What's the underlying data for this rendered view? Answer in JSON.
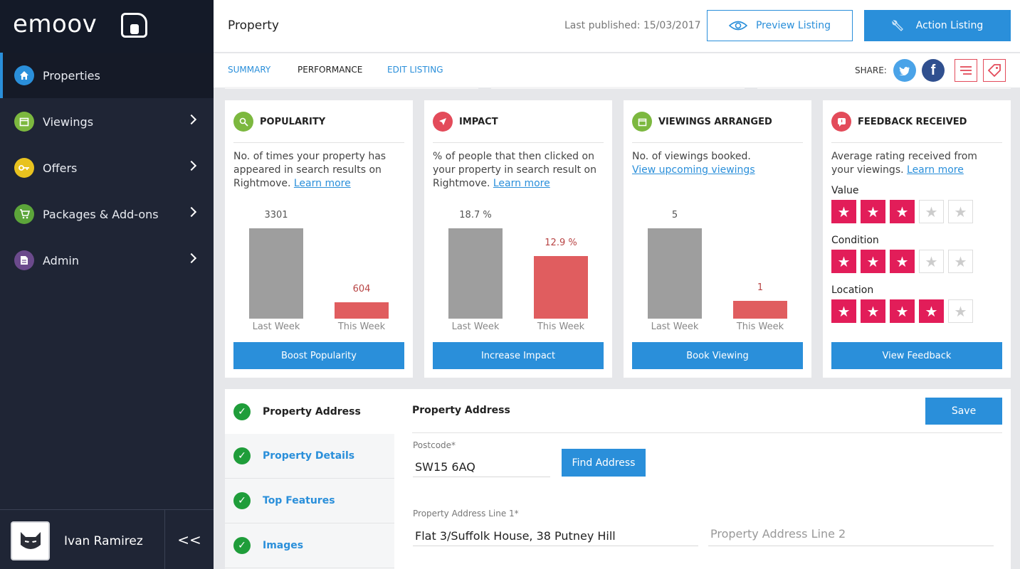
{
  "brand": {
    "name": "emoov"
  },
  "sidebar": {
    "items": [
      {
        "label": "Properties",
        "color": "#2a8fda"
      },
      {
        "label": "Viewings",
        "color": "#7cb83f"
      },
      {
        "label": "Offers",
        "color": "#e8c21f"
      },
      {
        "label": "Packages & Add-ons",
        "color": "#5ca53a"
      },
      {
        "label": "Admin",
        "color": "#6b4a8c"
      }
    ],
    "user": {
      "name": "Ivan Ramirez"
    },
    "collapse_label": "<<"
  },
  "header": {
    "title": "Property",
    "last_published": "Last published: 15/03/2017",
    "preview_label": "Preview Listing",
    "action_label": "Action Listing"
  },
  "tabs": [
    {
      "label": "SUMMARY"
    },
    {
      "label": "PERFORMANCE"
    },
    {
      "label": "EDIT LISTING"
    }
  ],
  "share": {
    "label": "SHARE:",
    "twitter_color": "#4aa3e8",
    "facebook_color": "#30508f",
    "accent": "#e34b5a"
  },
  "cards": {
    "popularity": {
      "title": "POPULARITY",
      "desc": "No. of times your property has appeared in search results on Rightmove.",
      "link": "Learn more",
      "last_week_value": "3301",
      "this_week_value": "604",
      "last_week_label": "Last Week",
      "this_week_label": "This Week",
      "cta": "Boost Popularity"
    },
    "impact": {
      "title": "IMPACT",
      "desc": "% of people that then clicked on your property in search result on Rightmove.",
      "link": "Learn more",
      "last_week_value": "18.7 %",
      "this_week_value": "12.9 %",
      "last_week_label": "Last Week",
      "this_week_label": "This Week",
      "cta": "Increase Impact"
    },
    "viewings": {
      "title": "VIEWINGS ARRANGED",
      "desc": "No. of viewings booked.",
      "link": "View upcoming viewings",
      "last_week_value": "5",
      "this_week_value": "1",
      "last_week_label": "Last Week",
      "this_week_label": "This Week",
      "cta": "Book Viewing"
    },
    "feedback": {
      "title": "FEEDBACK RECEIVED",
      "desc": "Average rating received from your viewings.",
      "link": "Learn more",
      "cta": "View Feedback",
      "ratings": [
        {
          "label": "Value",
          "stars": 3,
          "max": 5
        },
        {
          "label": "Condition",
          "stars": 3,
          "max": 5
        },
        {
          "label": "Location",
          "stars": 4,
          "max": 5
        }
      ]
    }
  },
  "form": {
    "steps": [
      {
        "label": "Property Address"
      },
      {
        "label": "Property Details"
      },
      {
        "label": "Top Features"
      },
      {
        "label": "Images"
      }
    ],
    "section_title": "Property Address",
    "save_label": "Save",
    "postcode_label": "Postcode*",
    "postcode_value": "SW15 6AQ",
    "find_label": "Find Address",
    "line1_label": "Property Address Line 1*",
    "line1_value": "Flat 3/Suffolk House, 38 Putney Hill",
    "line2_placeholder": "Property Address Line 2"
  }
}
